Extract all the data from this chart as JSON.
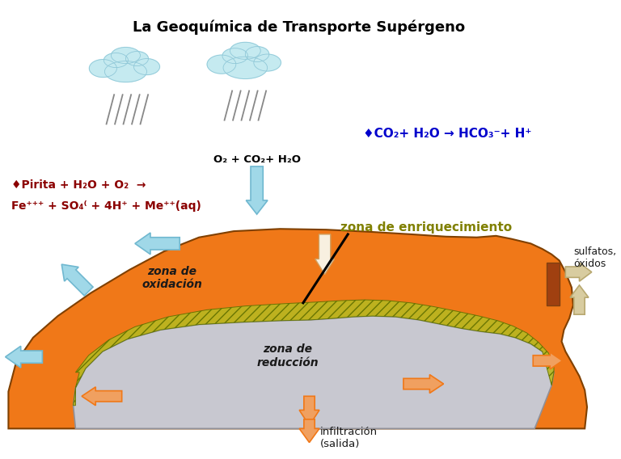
{
  "title": "La Geoquímica de Transporte Supérgeno",
  "title_fontsize": 13,
  "title_color": "#000000",
  "background_color": "#ffffff",
  "cloud_color": "#c5eaf0",
  "rain_color": "#888888",
  "eq1_text": "♦CO₂+ H₂O → HCO₃⁻+ H⁺",
  "eq1_color": "#0000cc",
  "eq2_line1": "♦Pirita + H₂O + O₂  →",
  "eq2_line2": "Fe⁺⁺⁺ + SO₄⁽ + 4H⁺ + Me⁺⁺(aq)",
  "eq2_color": "#8b0000",
  "rain_label": "O₂ + CO₂+ H₂O",
  "rain_label_color": "#000000",
  "orange_color": "#f07818",
  "orange_dark": "#c05000",
  "gray_color": "#c8c8d0",
  "hatch_color": "#b8b820",
  "hatch_edge": "#607000",
  "cyan_arrow": "#a0d8e8",
  "cyan_arrow_edge": "#70b8d0",
  "orange_arrow_light": "#f0a060",
  "beige_arrow": "#d8cca0",
  "beige_arrow_edge": "#b8a870",
  "zone_ox_text": "zona de\noxidación",
  "zone_red_text": "zona de\nreducción",
  "zone_enr_text": "zona de enriquecimiento",
  "zone_enr_color": "#808000",
  "sulfatos_text": "sulfatos,\nóxidos",
  "infiltracion_text": "infiltración\n(salida)",
  "text_color": "#1a1a1a"
}
